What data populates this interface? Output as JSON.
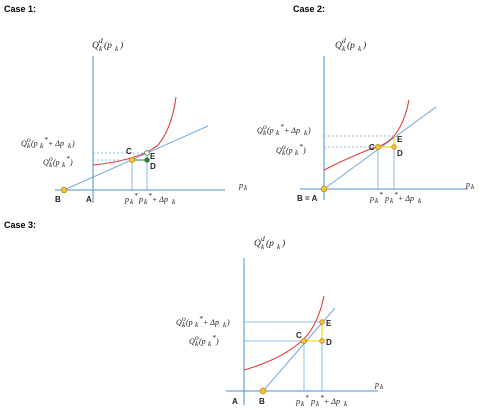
{
  "colors": {
    "axis": "#6fa8dc",
    "supply_line": "#6fa8dc",
    "demand_curve": "#e03030",
    "guide_line": "#6fa8dc",
    "point_fill": "#f5c242",
    "point_stroke": "#c08a00",
    "delta_marker": "#e8d400",
    "step_marker": "#2e7d32"
  },
  "cases": [
    {
      "title": "Case 1:",
      "demand_label": "Q_k^d(p_k)",
      "supply_label_upper": "Q_k^o(p_k* + Δp_k)",
      "supply_label_lower": "Q_k^o(p_k*)",
      "axis_label": "p_k",
      "origin_label": "A",
      "intercept_label": "B",
      "x_labels": [
        "p_k*",
        "p_k* + Δp_k"
      ],
      "points": [
        "C",
        "E",
        "D"
      ]
    },
    {
      "title": "Case 2:",
      "demand_label": "Q_k^d(p_k)",
      "supply_label_upper": "Q_k^o(p_k* + Δp_k)",
      "supply_label_lower": "Q_k^o(p_k*)",
      "axis_label": "p_k",
      "origin_label": "B = A",
      "intercept_label": "",
      "x_labels": [
        "p_k*",
        "p_k* + Δp_k"
      ],
      "points": [
        "C",
        "E",
        "D"
      ]
    },
    {
      "title": "Case 3:",
      "demand_label": "Q_k^d(p_k)",
      "supply_label_upper": "Q_k^o(p_k* + Δp_k)",
      "supply_label_lower": "Q_k^o(p_k*)",
      "axis_label": "p_k",
      "origin_label": "A",
      "intercept_label": "B",
      "x_labels": [
        "p_k*",
        "p_k* + Δp_k"
      ],
      "points": [
        "C",
        "E",
        "D"
      ]
    }
  ]
}
